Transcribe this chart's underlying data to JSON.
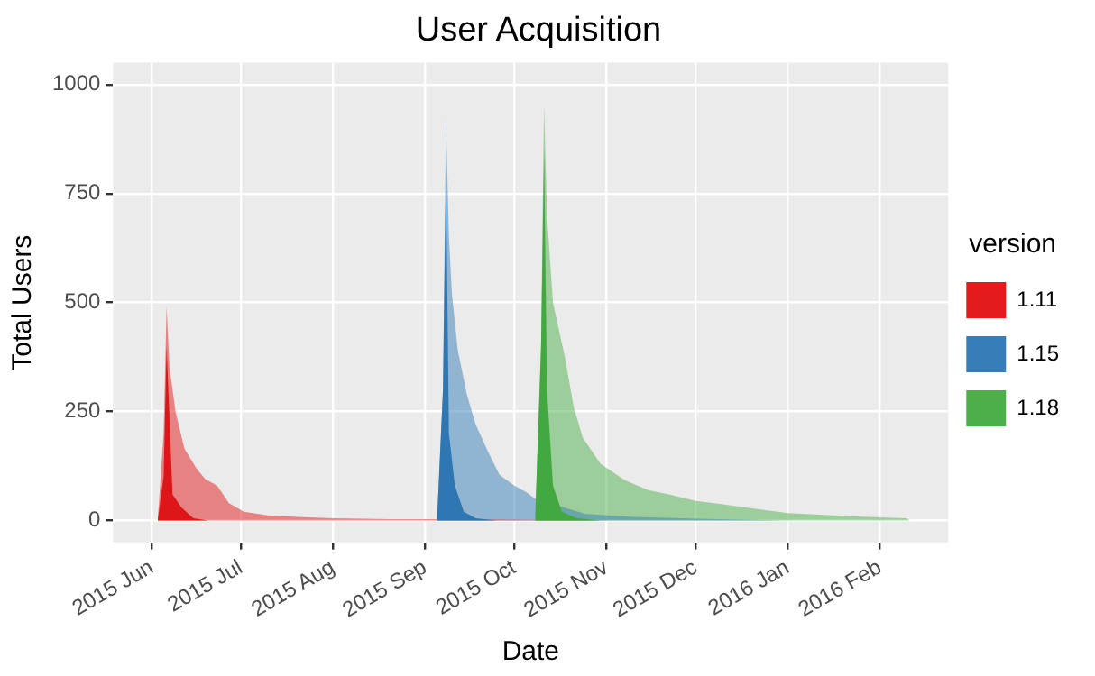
{
  "chart_data": {
    "type": "area",
    "title": "User Acquisition",
    "xlabel": "Date",
    "ylabel": "Total Users",
    "legend_title": "version",
    "legend": "right",
    "grid": true,
    "xlim": [
      "2015-05-19",
      "2016-02-24"
    ],
    "xticks": [
      {
        "value": "2015-06-01",
        "label": "2015 Jun"
      },
      {
        "value": "2015-07-01",
        "label": "2015 Jul"
      },
      {
        "value": "2015-08-01",
        "label": "2015 Aug"
      },
      {
        "value": "2015-09-01",
        "label": "2015 Sep"
      },
      {
        "value": "2015-10-01",
        "label": "2015 Oct"
      },
      {
        "value": "2015-11-01",
        "label": "2015 Nov"
      },
      {
        "value": "2015-12-01",
        "label": "2015 Dec"
      },
      {
        "value": "2016-01-01",
        "label": "2016 Jan"
      },
      {
        "value": "2016-02-01",
        "label": "2016 Feb"
      }
    ],
    "ylim": [
      -50,
      1050
    ],
    "yticks": [
      0,
      250,
      500,
      750,
      1000
    ],
    "series": [
      {
        "name": "1.11",
        "color": "#e41a1c",
        "x": [
          "2015-06-03",
          "2015-06-05",
          "2015-06-06",
          "2015-06-07",
          "2015-06-09",
          "2015-06-12",
          "2015-06-16",
          "2015-06-19",
          "2015-06-23",
          "2015-06-27",
          "2015-07-02",
          "2015-07-10",
          "2015-07-20",
          "2015-08-01",
          "2015-08-20",
          "2015-09-10",
          "2015-10-01",
          "2015-10-20",
          "2015-11-01"
        ],
        "values": [
          0,
          200,
          490,
          350,
          250,
          165,
          120,
          95,
          80,
          40,
          20,
          12,
          8,
          5,
          3,
          3,
          2,
          1,
          0
        ]
      },
      {
        "name": "1.15",
        "color": "#377eb8",
        "x": [
          "2015-09-05",
          "2015-09-07",
          "2015-09-08",
          "2015-09-09",
          "2015-09-10",
          "2015-09-12",
          "2015-09-15",
          "2015-09-18",
          "2015-09-22",
          "2015-09-26",
          "2015-10-01",
          "2015-10-05",
          "2015-10-08",
          "2015-10-25",
          "2015-11-10",
          "2015-12-01",
          "2015-12-31"
        ],
        "values": [
          0,
          300,
          920,
          650,
          520,
          390,
          290,
          220,
          160,
          105,
          80,
          65,
          50,
          15,
          8,
          4,
          0
        ]
      },
      {
        "name": "1.18",
        "color": "#4daf4a",
        "x": [
          "2015-10-08",
          "2015-10-10",
          "2015-10-11",
          "2015-10-12",
          "2015-10-14",
          "2015-10-18",
          "2015-10-21",
          "2015-10-24",
          "2015-10-30",
          "2015-11-07",
          "2015-11-15",
          "2015-11-22",
          "2015-12-01",
          "2015-12-09",
          "2015-12-20",
          "2016-01-01",
          "2016-01-22",
          "2016-02-05",
          "2016-02-10",
          "2016-02-11"
        ],
        "values": [
          0,
          400,
          950,
          700,
          500,
          375,
          260,
          190,
          130,
          93,
          70,
          60,
          45,
          38,
          28,
          17,
          10,
          6,
          5,
          0
        ]
      },
      {
        "color": "#dc1619",
        "x": [
          "2015-06-03",
          "2015-06-05",
          "2015-06-06",
          "2015-06-08",
          "2015-06-11",
          "2015-06-15",
          "2015-06-20"
        ],
        "values": [
          0,
          100,
          400,
          60,
          30,
          5,
          0
        ]
      },
      {
        "color": "#2f77b3",
        "x": [
          "2015-09-05",
          "2015-09-07",
          "2015-09-08",
          "2015-09-09",
          "2015-09-11",
          "2015-09-14",
          "2015-09-18",
          "2015-09-25"
        ],
        "values": [
          0,
          300,
          800,
          200,
          80,
          20,
          5,
          0
        ]
      },
      {
        "color": "#44a841",
        "x": [
          "2015-10-08",
          "2015-10-10",
          "2015-10-11",
          "2015-10-12",
          "2015-10-14",
          "2015-10-17",
          "2015-10-22",
          "2015-10-30"
        ],
        "values": [
          0,
          400,
          850,
          300,
          80,
          20,
          5,
          0
        ]
      }
    ]
  }
}
